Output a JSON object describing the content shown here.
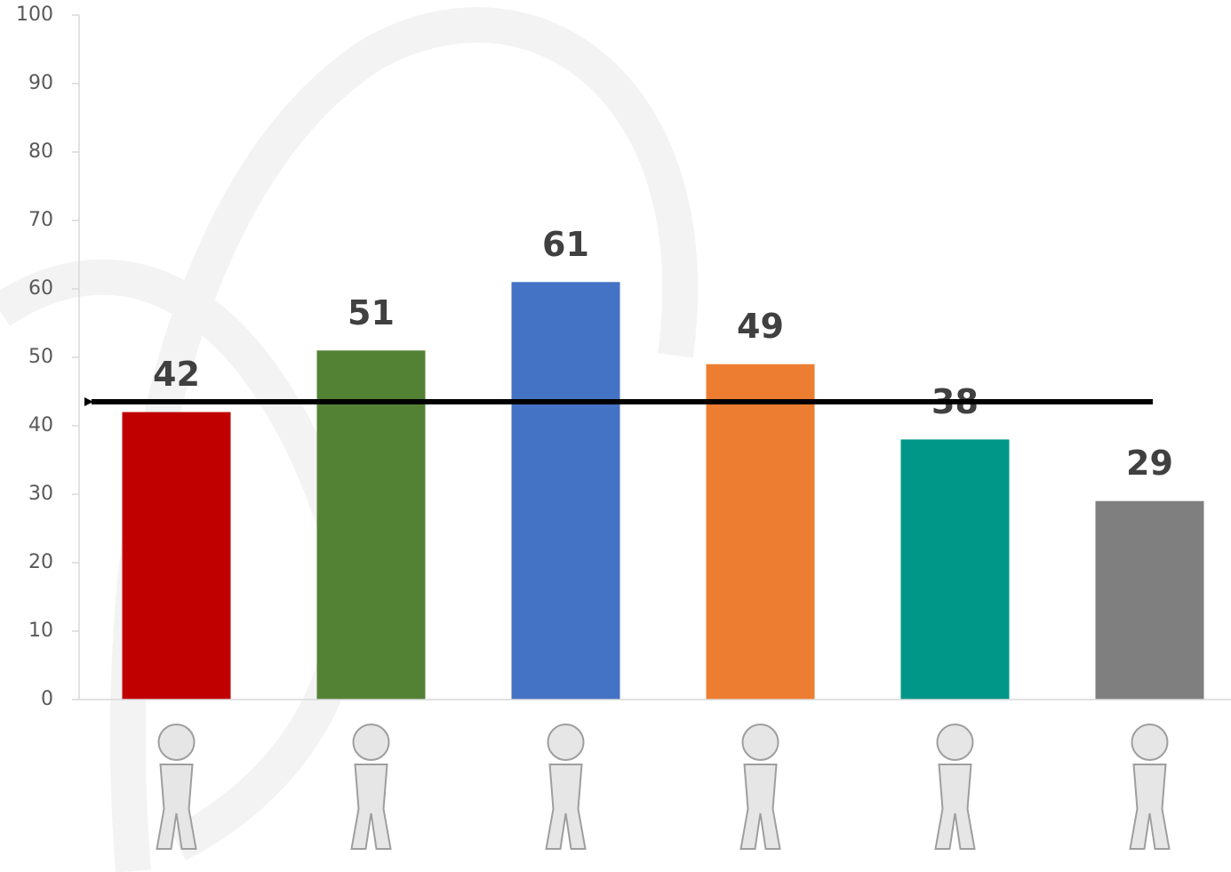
{
  "chart_data": {
    "type": "bar",
    "categories": [
      null,
      null,
      null,
      null,
      null,
      null
    ],
    "values": [
      42,
      51,
      61,
      49,
      38,
      29
    ],
    "colors": [
      "#c00000",
      "#548235",
      "#4472c4",
      "#ed7d31",
      "#009688",
      "#7f7f7f"
    ],
    "ylim": [
      0,
      100
    ],
    "yticks": [
      0,
      10,
      20,
      30,
      40,
      50,
      60,
      70,
      80,
      90,
      100
    ]
  }
}
